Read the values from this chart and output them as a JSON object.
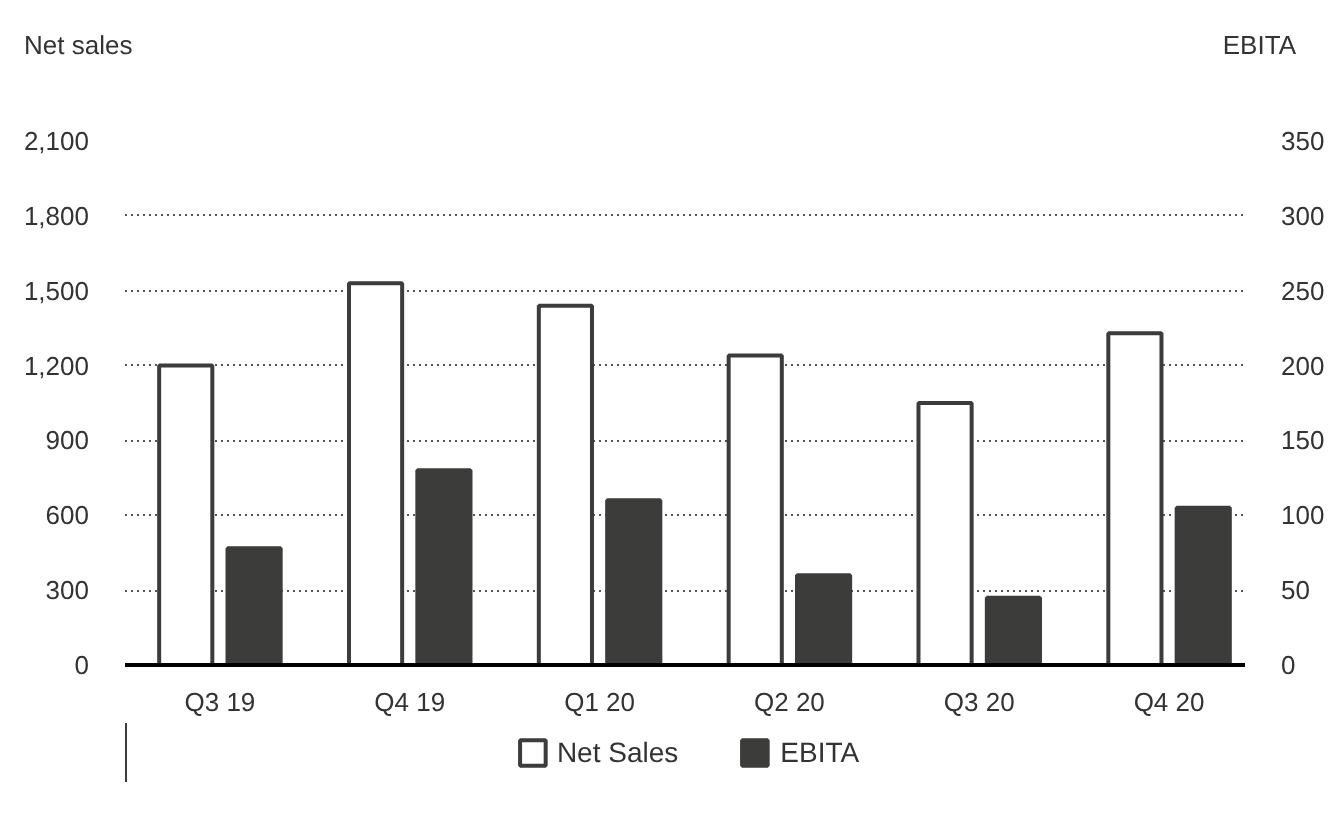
{
  "chart_data": {
    "type": "bar",
    "ylabel": "Net sales",
    "y2label": "EBITA",
    "categories": [
      "Q3 19",
      "Q4 19",
      "Q1 20",
      "Q2 20",
      "Q3 20",
      "Q4 20"
    ],
    "series": [
      {
        "name": "Net Sales",
        "color": "#ffffff",
        "values": [
          1200,
          1530,
          1440,
          1240,
          1050,
          1330
        ]
      },
      {
        "name": "EBITA",
        "color": "#3c3c3b",
        "axis": "y2",
        "values": [
          78,
          130,
          110,
          60,
          45,
          105
        ]
      }
    ],
    "ylim": [
      0,
      2100
    ],
    "yticks": [
      0,
      300,
      600,
      900,
      {
        "value": 1200,
        "label": "1,200"
      },
      {
        "value": 1500,
        "label": "1,500"
      },
      {
        "value": 1800,
        "label": "1,800"
      },
      {
        "value": 2100,
        "label": "2,100"
      }
    ],
    "y2lim": [
      0,
      350
    ],
    "y2ticks": [
      0,
      50,
      100,
      150,
      200,
      250,
      300,
      350
    ],
    "grid": "y",
    "legend": "bottom"
  }
}
